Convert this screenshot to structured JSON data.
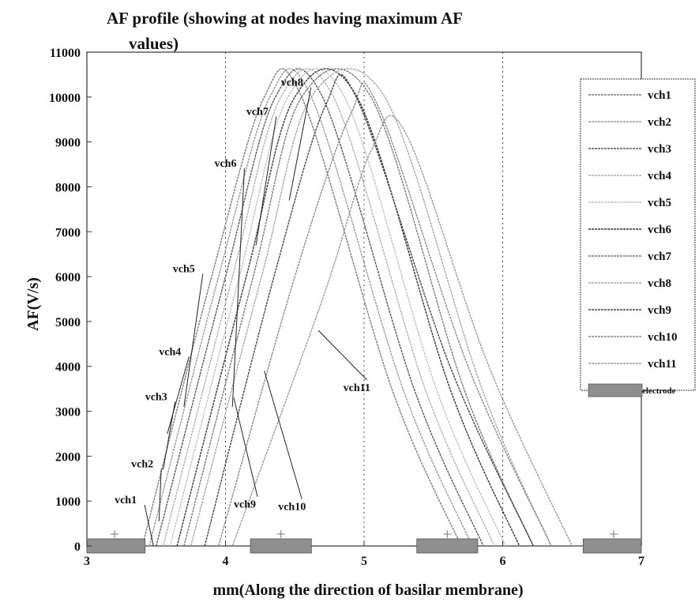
{
  "chart_data": {
    "type": "line",
    "title_line1": "AF profile (showing at nodes having maximum AF",
    "title_line2": "values)",
    "xlabel": "mm(Along the direction of basilar membrane)",
    "ylabel": "AF(V/s)",
    "xlim": [
      3,
      7
    ],
    "ylim": [
      0,
      11000
    ],
    "xticks": [
      3,
      4,
      5,
      6,
      7
    ],
    "yticks": [
      0,
      1000,
      2000,
      3000,
      4000,
      5000,
      6000,
      7000,
      8000,
      9000,
      10000,
      11000
    ],
    "grid": "vertical dotted lines at x = 4, 5, 6",
    "legend_position": "top-right",
    "series": [
      {
        "name": "vch1",
        "color": "#7a7a7a",
        "points": [
          [
            3.4,
            0
          ],
          [
            3.9,
            6000
          ],
          [
            4.28,
            10000
          ],
          [
            4.55,
            10000
          ],
          [
            5.2,
            3500
          ],
          [
            5.7,
            0
          ]
        ]
      },
      {
        "name": "vch2",
        "color": "#9a9a9a",
        "points": [
          [
            3.45,
            0
          ],
          [
            3.95,
            6000
          ],
          [
            4.32,
            10000
          ],
          [
            4.62,
            10000
          ],
          [
            5.28,
            3500
          ],
          [
            5.78,
            0
          ]
        ]
      },
      {
        "name": "vch3",
        "color": "#555555",
        "points": [
          [
            3.5,
            0
          ],
          [
            4.0,
            6000
          ],
          [
            4.36,
            10000
          ],
          [
            4.7,
            10000
          ],
          [
            5.36,
            3500
          ],
          [
            5.86,
            0
          ]
        ]
      },
      {
        "name": "vch4",
        "color": "#b0b0b0",
        "points": [
          [
            3.55,
            0
          ],
          [
            4.05,
            6000
          ],
          [
            4.4,
            10000
          ],
          [
            4.78,
            10000
          ],
          [
            5.44,
            3500
          ],
          [
            5.94,
            0
          ]
        ]
      },
      {
        "name": "vch5",
        "color": "#c0c0c0",
        "points": [
          [
            3.6,
            0
          ],
          [
            4.1,
            6000
          ],
          [
            4.45,
            10000
          ],
          [
            4.86,
            10000
          ],
          [
            5.52,
            3500
          ],
          [
            6.02,
            0
          ]
        ]
      },
      {
        "name": "vch6",
        "color": "#333333",
        "points": [
          [
            3.65,
            0
          ],
          [
            4.15,
            6000
          ],
          [
            4.5,
            10000
          ],
          [
            4.95,
            10000
          ],
          [
            5.62,
            3500
          ],
          [
            6.12,
            0
          ]
        ]
      },
      {
        "name": "vch7",
        "color": "#777777",
        "points": [
          [
            3.7,
            0
          ],
          [
            4.2,
            6000
          ],
          [
            4.55,
            10000
          ],
          [
            5.05,
            10000
          ],
          [
            5.72,
            3500
          ],
          [
            6.22,
            0
          ]
        ]
      },
      {
        "name": "vch8",
        "color": "#a5a5a5",
        "points": [
          [
            3.75,
            0
          ],
          [
            4.26,
            6000
          ],
          [
            4.62,
            10000
          ],
          [
            5.15,
            10000
          ],
          [
            5.85,
            3500
          ],
          [
            6.35,
            0
          ]
        ]
      },
      {
        "name": "vch9",
        "color": "#444444",
        "points": [
          [
            3.85,
            0
          ],
          [
            4.35,
            6000
          ],
          [
            4.72,
            9800
          ],
          [
            4.95,
            9950
          ],
          [
            5.62,
            4000
          ],
          [
            6.22,
            0
          ]
        ]
      },
      {
        "name": "vch10",
        "color": "#888888",
        "points": [
          [
            3.95,
            0
          ],
          [
            4.5,
            6000
          ],
          [
            4.9,
            9600
          ],
          [
            5.1,
            9800
          ],
          [
            5.75,
            4000
          ],
          [
            6.35,
            0
          ]
        ]
      },
      {
        "name": "vch11",
        "color": "#999999",
        "points": [
          [
            4.05,
            0
          ],
          [
            4.7,
            5500
          ],
          [
            5.05,
            8800
          ],
          [
            5.3,
            9200
          ],
          [
            5.9,
            4000
          ],
          [
            6.5,
            0
          ]
        ]
      }
    ],
    "curve_labels": [
      {
        "text": "vch1",
        "label_x": 3.2,
        "label_y": 950
      },
      {
        "text": "vch2",
        "label_x": 3.32,
        "label_y": 1750
      },
      {
        "text": "vch3",
        "label_x": 3.42,
        "label_y": 3250
      },
      {
        "text": "vch4",
        "label_x": 3.52,
        "label_y": 4250
      },
      {
        "text": "vch5",
        "label_x": 3.62,
        "label_y": 6100
      },
      {
        "text": "vch6",
        "label_x": 3.92,
        "label_y": 8450
      },
      {
        "text": "vch7",
        "label_x": 4.15,
        "label_y": 9600
      },
      {
        "text": "vch8",
        "label_x": 4.4,
        "label_y": 10250
      },
      {
        "text": "vch9",
        "label_x": 4.06,
        "label_y": 850
      },
      {
        "text": "vch10",
        "label_x": 4.38,
        "label_y": 800
      },
      {
        "text": "vch11",
        "label_x": 4.85,
        "label_y": 3450
      }
    ],
    "electrodes": {
      "name": "electrode",
      "color": "#8f8f8f",
      "ranges": [
        [
          3.0,
          3.42
        ],
        [
          4.18,
          4.62
        ],
        [
          5.38,
          5.82
        ],
        [
          6.58,
          7.0
        ]
      ],
      "markers": [
        3.2,
        4.4,
        5.6,
        6.8
      ]
    }
  },
  "legend": {
    "entries": [
      "vch1",
      "vch2",
      "vch3",
      "vch4",
      "vch5",
      "vch6",
      "vch7",
      "vch8",
      "vch9",
      "vch10",
      "vch11"
    ],
    "electrode_label": "electrode"
  }
}
